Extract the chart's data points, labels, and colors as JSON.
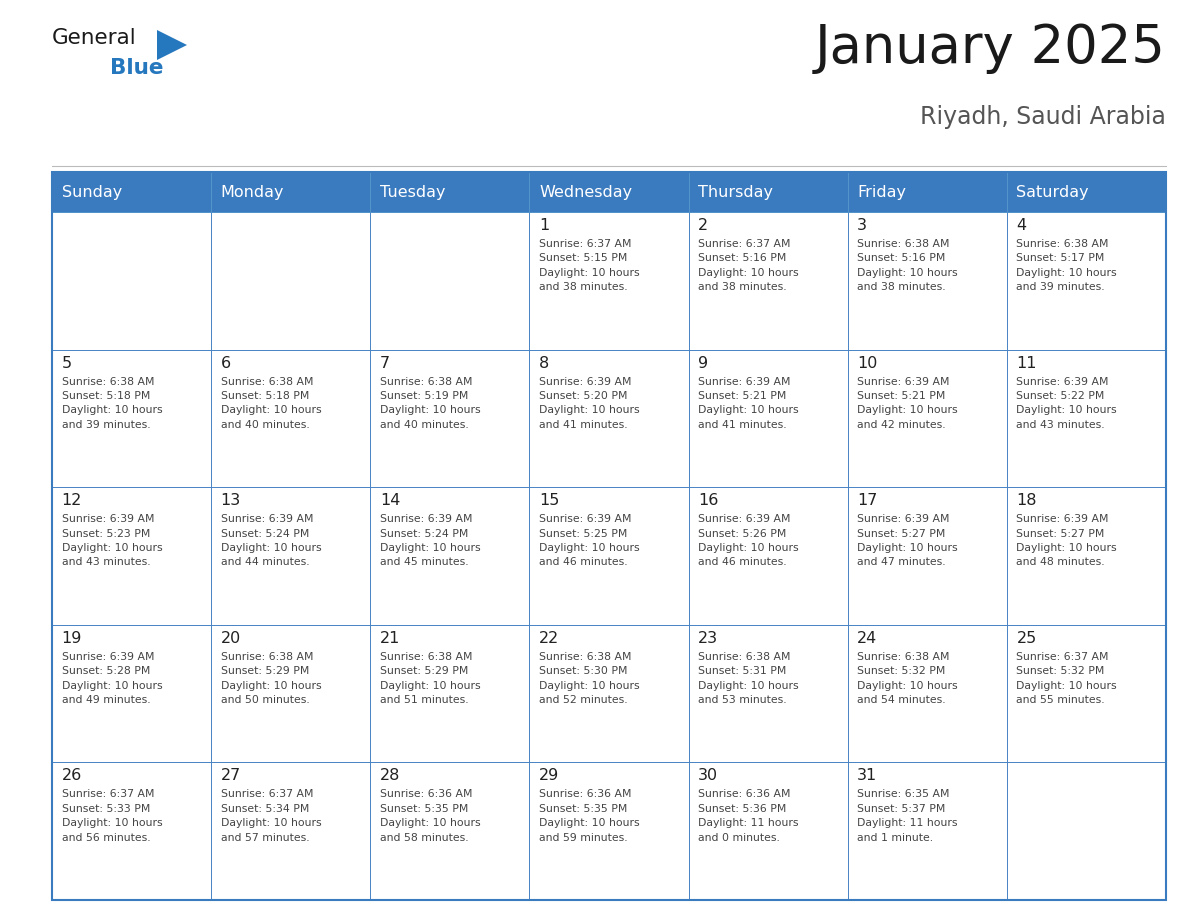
{
  "title": "January 2025",
  "subtitle": "Riyadh, Saudi Arabia",
  "header_bg": "#3a7abf",
  "header_text_color": "#ffffff",
  "border_color": "#3a7abf",
  "text_color": "#333333",
  "day_names": [
    "Sunday",
    "Monday",
    "Tuesday",
    "Wednesday",
    "Thursday",
    "Friday",
    "Saturday"
  ],
  "logo_general_color": "#1a1a1a",
  "logo_blue_color": "#2577be",
  "calendar_data": [
    [
      {
        "day": null,
        "sunrise": null,
        "sunset": null,
        "daylight": null
      },
      {
        "day": null,
        "sunrise": null,
        "sunset": null,
        "daylight": null
      },
      {
        "day": null,
        "sunrise": null,
        "sunset": null,
        "daylight": null
      },
      {
        "day": 1,
        "sunrise": "6:37 AM",
        "sunset": "5:15 PM",
        "daylight": "10 hours\nand 38 minutes."
      },
      {
        "day": 2,
        "sunrise": "6:37 AM",
        "sunset": "5:16 PM",
        "daylight": "10 hours\nand 38 minutes."
      },
      {
        "day": 3,
        "sunrise": "6:38 AM",
        "sunset": "5:16 PM",
        "daylight": "10 hours\nand 38 minutes."
      },
      {
        "day": 4,
        "sunrise": "6:38 AM",
        "sunset": "5:17 PM",
        "daylight": "10 hours\nand 39 minutes."
      }
    ],
    [
      {
        "day": 5,
        "sunrise": "6:38 AM",
        "sunset": "5:18 PM",
        "daylight": "10 hours\nand 39 minutes."
      },
      {
        "day": 6,
        "sunrise": "6:38 AM",
        "sunset": "5:18 PM",
        "daylight": "10 hours\nand 40 minutes."
      },
      {
        "day": 7,
        "sunrise": "6:38 AM",
        "sunset": "5:19 PM",
        "daylight": "10 hours\nand 40 minutes."
      },
      {
        "day": 8,
        "sunrise": "6:39 AM",
        "sunset": "5:20 PM",
        "daylight": "10 hours\nand 41 minutes."
      },
      {
        "day": 9,
        "sunrise": "6:39 AM",
        "sunset": "5:21 PM",
        "daylight": "10 hours\nand 41 minutes."
      },
      {
        "day": 10,
        "sunrise": "6:39 AM",
        "sunset": "5:21 PM",
        "daylight": "10 hours\nand 42 minutes."
      },
      {
        "day": 11,
        "sunrise": "6:39 AM",
        "sunset": "5:22 PM",
        "daylight": "10 hours\nand 43 minutes."
      }
    ],
    [
      {
        "day": 12,
        "sunrise": "6:39 AM",
        "sunset": "5:23 PM",
        "daylight": "10 hours\nand 43 minutes."
      },
      {
        "day": 13,
        "sunrise": "6:39 AM",
        "sunset": "5:24 PM",
        "daylight": "10 hours\nand 44 minutes."
      },
      {
        "day": 14,
        "sunrise": "6:39 AM",
        "sunset": "5:24 PM",
        "daylight": "10 hours\nand 45 minutes."
      },
      {
        "day": 15,
        "sunrise": "6:39 AM",
        "sunset": "5:25 PM",
        "daylight": "10 hours\nand 46 minutes."
      },
      {
        "day": 16,
        "sunrise": "6:39 AM",
        "sunset": "5:26 PM",
        "daylight": "10 hours\nand 46 minutes."
      },
      {
        "day": 17,
        "sunrise": "6:39 AM",
        "sunset": "5:27 PM",
        "daylight": "10 hours\nand 47 minutes."
      },
      {
        "day": 18,
        "sunrise": "6:39 AM",
        "sunset": "5:27 PM",
        "daylight": "10 hours\nand 48 minutes."
      }
    ],
    [
      {
        "day": 19,
        "sunrise": "6:39 AM",
        "sunset": "5:28 PM",
        "daylight": "10 hours\nand 49 minutes."
      },
      {
        "day": 20,
        "sunrise": "6:38 AM",
        "sunset": "5:29 PM",
        "daylight": "10 hours\nand 50 minutes."
      },
      {
        "day": 21,
        "sunrise": "6:38 AM",
        "sunset": "5:29 PM",
        "daylight": "10 hours\nand 51 minutes."
      },
      {
        "day": 22,
        "sunrise": "6:38 AM",
        "sunset": "5:30 PM",
        "daylight": "10 hours\nand 52 minutes."
      },
      {
        "day": 23,
        "sunrise": "6:38 AM",
        "sunset": "5:31 PM",
        "daylight": "10 hours\nand 53 minutes."
      },
      {
        "day": 24,
        "sunrise": "6:38 AM",
        "sunset": "5:32 PM",
        "daylight": "10 hours\nand 54 minutes."
      },
      {
        "day": 25,
        "sunrise": "6:37 AM",
        "sunset": "5:32 PM",
        "daylight": "10 hours\nand 55 minutes."
      }
    ],
    [
      {
        "day": 26,
        "sunrise": "6:37 AM",
        "sunset": "5:33 PM",
        "daylight": "10 hours\nand 56 minutes."
      },
      {
        "day": 27,
        "sunrise": "6:37 AM",
        "sunset": "5:34 PM",
        "daylight": "10 hours\nand 57 minutes."
      },
      {
        "day": 28,
        "sunrise": "6:36 AM",
        "sunset": "5:35 PM",
        "daylight": "10 hours\nand 58 minutes."
      },
      {
        "day": 29,
        "sunrise": "6:36 AM",
        "sunset": "5:35 PM",
        "daylight": "10 hours\nand 59 minutes."
      },
      {
        "day": 30,
        "sunrise": "6:36 AM",
        "sunset": "5:36 PM",
        "daylight": "11 hours\nand 0 minutes."
      },
      {
        "day": 31,
        "sunrise": "6:35 AM",
        "sunset": "5:37 PM",
        "daylight": "11 hours\nand 1 minute."
      },
      {
        "day": null,
        "sunrise": null,
        "sunset": null,
        "daylight": null
      }
    ]
  ],
  "fig_width": 11.88,
  "fig_height": 9.18,
  "fig_dpi": 100
}
